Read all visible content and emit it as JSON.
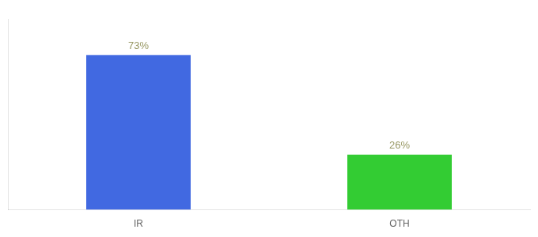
{
  "chart_data": {
    "type": "bar",
    "categories": [
      "IR",
      "OTH"
    ],
    "values": [
      73,
      26
    ],
    "value_labels": [
      "73%",
      "26%"
    ],
    "colors": [
      "#4169E1",
      "#33CC33"
    ],
    "ylim": [
      0,
      90
    ],
    "grid": false,
    "data_labels": true,
    "tick_labels": "x"
  }
}
